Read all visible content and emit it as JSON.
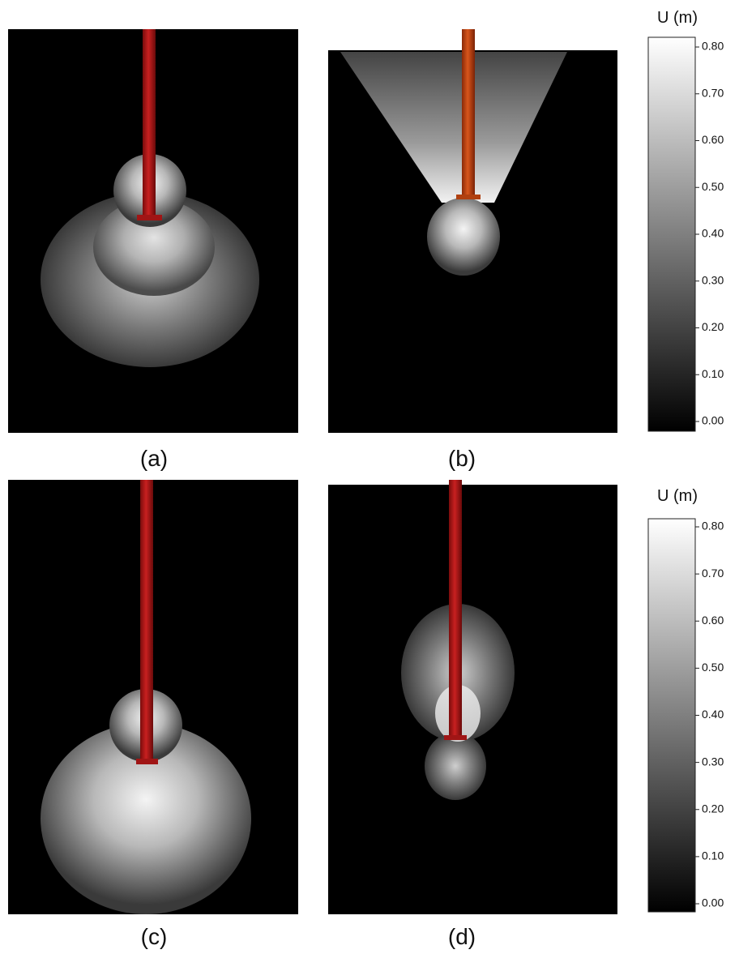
{
  "panels": [
    {
      "label": "(a)"
    },
    {
      "label": "(b)"
    },
    {
      "label": "(c)"
    },
    {
      "label": "(d)"
    }
  ],
  "colorbars": [
    {
      "title": "U (m)",
      "ticks": [
        {
          "value": 0,
          "label": "0.00"
        },
        {
          "value": 0.1,
          "label": "0.10"
        },
        {
          "value": 0.2,
          "label": "0.20"
        },
        {
          "value": 0.3,
          "label": "0.30"
        },
        {
          "value": 0.4,
          "label": "0.40"
        },
        {
          "value": 0.5,
          "label": "0.50"
        },
        {
          "value": 0.6,
          "label": "0.60"
        },
        {
          "value": 0.7,
          "label": "0.70"
        },
        {
          "value": 0.8,
          "label": "0.80"
        }
      ]
    },
    {
      "title": "U (m)",
      "ticks": [
        {
          "value": 0,
          "label": "0.00"
        },
        {
          "value": 0.1,
          "label": "0.10"
        },
        {
          "value": 0.2,
          "label": "0.20"
        },
        {
          "value": 0.3,
          "label": "0.30"
        },
        {
          "value": 0.4,
          "label": "0.40"
        },
        {
          "value": 0.5,
          "label": "0.50"
        },
        {
          "value": 0.6,
          "label": "0.60"
        },
        {
          "value": 0.7,
          "label": "0.70"
        },
        {
          "value": 0.8,
          "label": "0.80"
        }
      ]
    }
  ]
}
